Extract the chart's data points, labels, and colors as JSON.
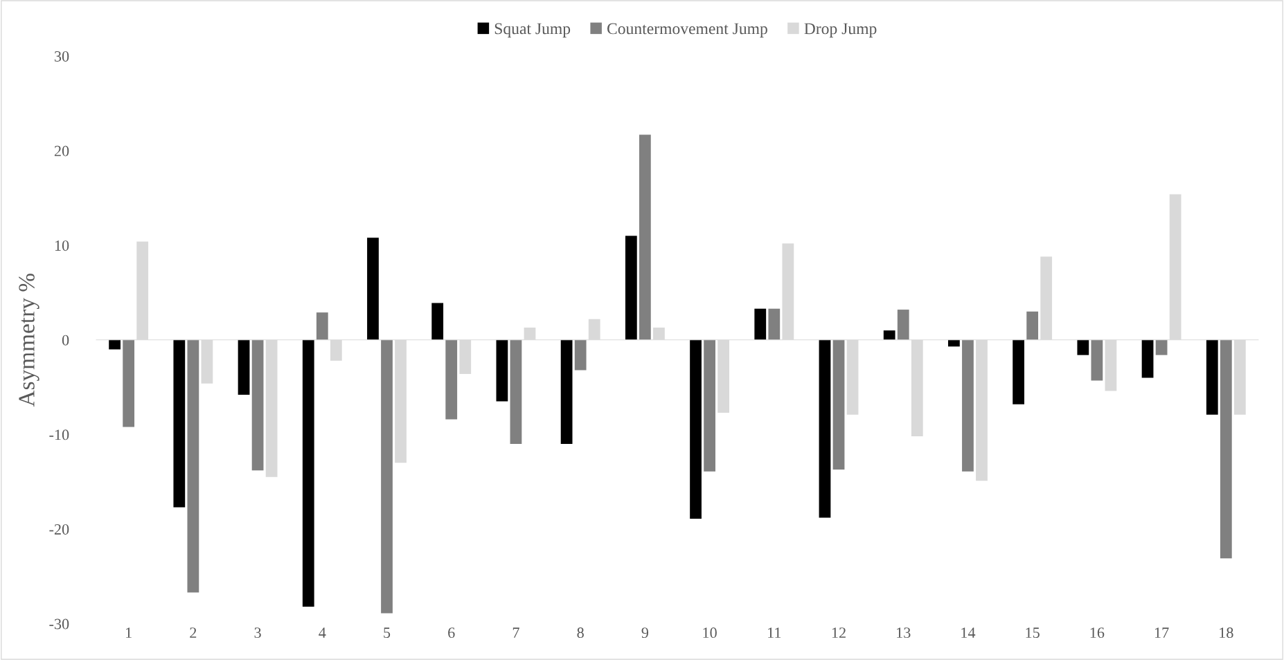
{
  "chart_data": {
    "type": "bar",
    "ylabel": "Asymmetry %",
    "categories": [
      "1",
      "2",
      "3",
      "4",
      "5",
      "6",
      "7",
      "8",
      "9",
      "10",
      "11",
      "12",
      "13",
      "14",
      "15",
      "16",
      "17",
      "18"
    ],
    "series": [
      {
        "name": "Squat Jump",
        "color": "#000000",
        "values": [
          -1.0,
          -17.7,
          -5.8,
          -28.2,
          10.8,
          3.9,
          -6.5,
          -11.0,
          11.0,
          -18.9,
          3.3,
          -18.8,
          1.0,
          -0.7,
          -6.8,
          -1.6,
          -4.0,
          -7.9
        ]
      },
      {
        "name": "Countermovement Jump",
        "color": "#808080",
        "values": [
          -9.2,
          -26.7,
          -13.8,
          2.9,
          -28.9,
          -8.4,
          -11.0,
          -3.2,
          21.7,
          -13.9,
          3.3,
          -13.7,
          3.2,
          -13.9,
          3.0,
          -4.3,
          -1.6,
          -23.1
        ]
      },
      {
        "name": "Drop Jump",
        "color": "#d9d9d9",
        "values": [
          10.4,
          -4.6,
          -14.5,
          -2.2,
          -13.0,
          -3.6,
          1.3,
          2.2,
          1.3,
          -7.7,
          10.2,
          -7.9,
          -10.2,
          -14.9,
          8.8,
          -5.4,
          15.4,
          -7.9
        ]
      }
    ],
    "ylim": [
      -30,
      30
    ],
    "yticks": [
      -30,
      -20,
      -10,
      0,
      10,
      20,
      30
    ],
    "legend": "top"
  }
}
